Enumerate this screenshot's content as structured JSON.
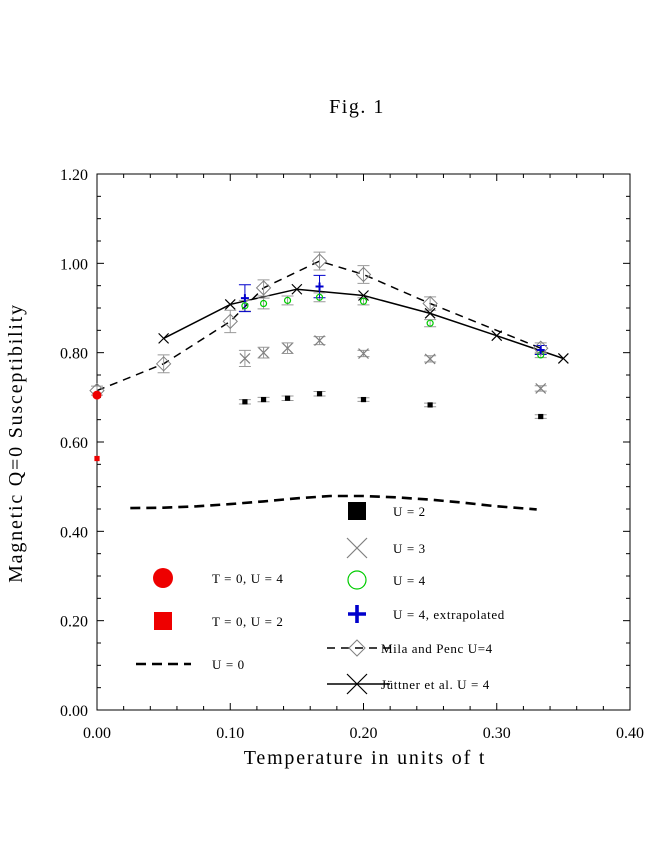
{
  "figure_title": "Fig. 1",
  "chart_data": {
    "type": "scatter",
    "title": "Fig. 1",
    "xlabel": "Temperature in units of t",
    "ylabel": "Magnetic Q=0 Susceptibility",
    "xlim": [
      0.0,
      0.4
    ],
    "ylim": [
      0.0,
      1.2
    ],
    "xticks": [
      "0.00",
      "0.10",
      "0.20",
      "0.30",
      "0.40"
    ],
    "yticks": [
      "0.00",
      "0.20",
      "0.40",
      "0.60",
      "0.80",
      "1.00",
      "1.20"
    ],
    "grid": false,
    "legend_position": "lower-center",
    "series": [
      {
        "name": "U = 2",
        "marker": "filled-square",
        "color": "#000000",
        "x": [
          0.111,
          0.125,
          0.143,
          0.167,
          0.2,
          0.25,
          0.333
        ],
        "y": [
          0.69,
          0.695,
          0.698,
          0.708,
          0.695,
          0.683,
          0.657
        ],
        "err": [
          0.005,
          0.005,
          0.005,
          0.005,
          0.004,
          0.004,
          0.004
        ]
      },
      {
        "name": "U = 3",
        "marker": "x",
        "color": "#808080",
        "x": [
          0.111,
          0.125,
          0.143,
          0.167,
          0.2,
          0.25,
          0.333
        ],
        "y": [
          0.787,
          0.8,
          0.81,
          0.827,
          0.798,
          0.786,
          0.72
        ],
        "err": [
          0.018,
          0.012,
          0.012,
          0.009,
          0.007,
          0.007,
          0.006
        ]
      },
      {
        "name": "U = 4",
        "marker": "open-circle",
        "color": "#00cc00",
        "x": [
          0.111,
          0.125,
          0.143,
          0.167,
          0.2,
          0.25,
          0.333
        ],
        "y": [
          0.905,
          0.91,
          0.917,
          0.924,
          0.915,
          0.866,
          0.795
        ],
        "err": [
          0.012,
          0.012,
          0.01,
          0.01,
          0.008,
          0.008,
          0.006
        ]
      },
      {
        "name": "U = 4, extrapolated",
        "marker": "plus",
        "color": "#0000cc",
        "x": [
          0.111,
          0.167,
          0.333
        ],
        "y": [
          0.922,
          0.948,
          0.806
        ],
        "err": [
          0.03,
          0.025,
          0.01
        ]
      },
      {
        "name": "Mila and Penc U=4",
        "marker": "open-diamond",
        "color": "#808080",
        "line": "dashed",
        "line_color": "#000000",
        "x": [
          0.0,
          0.05,
          0.1,
          0.125,
          0.167,
          0.2,
          0.25,
          0.333
        ],
        "y": [
          0.715,
          0.775,
          0.87,
          0.945,
          1.005,
          0.975,
          0.91,
          0.81
        ],
        "err": [
          0.01,
          0.02,
          0.025,
          0.018,
          0.02,
          0.02,
          0.015,
          0.012
        ]
      },
      {
        "name": "Jüttner et al. U = 4",
        "marker": "x",
        "color": "#000000",
        "line": "solid",
        "x": [
          0.05,
          0.1,
          0.15,
          0.2,
          0.25,
          0.3,
          0.35
        ],
        "y": [
          0.832,
          0.908,
          0.942,
          0.928,
          0.888,
          0.838,
          0.787
        ]
      },
      {
        "name": "U = 0",
        "line": "dashed",
        "color": "#000000",
        "x": [
          0.025,
          0.05,
          0.075,
          0.1,
          0.125,
          0.15,
          0.175,
          0.2,
          0.225,
          0.25,
          0.275,
          0.3,
          0.33
        ],
        "y": [
          0.452,
          0.453,
          0.456,
          0.461,
          0.467,
          0.474,
          0.479,
          0.479,
          0.476,
          0.471,
          0.464,
          0.456,
          0.449
        ]
      },
      {
        "name": "T = 0, U = 4",
        "marker": "filled-circle",
        "color": "#ee0000",
        "x": [
          0.0
        ],
        "y": [
          0.705
        ]
      },
      {
        "name": "T = 0, U = 2",
        "marker": "filled-square",
        "color": "#ee0000",
        "x": [
          0.0
        ],
        "y": [
          0.563
        ]
      }
    ],
    "legend": [
      {
        "label": "U = 2",
        "series": 0
      },
      {
        "label": "U = 3",
        "series": 1
      },
      {
        "label": "U = 4",
        "series": 2
      },
      {
        "label": "U = 4, extrapolated",
        "series": 3
      },
      {
        "label": "Mila and Penc U=4",
        "series": 4
      },
      {
        "label": "Jüttner et al. U = 4",
        "series": 5
      },
      {
        "label": "T = 0, U = 4",
        "series": 7
      },
      {
        "label": "T = 0, U = 2",
        "series": 8
      },
      {
        "label": "U = 0",
        "series": 6
      }
    ]
  }
}
